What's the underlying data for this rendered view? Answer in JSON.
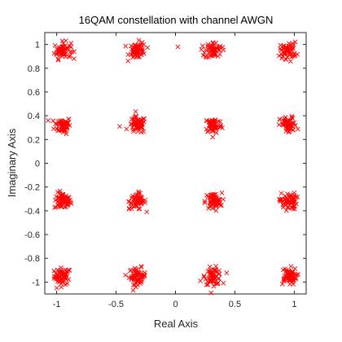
{
  "chart_data": {
    "type": "scatter",
    "title": "16QAM constellation with channel AWGN",
    "xlabel": "Real Axis",
    "ylabel": "Imaginary Axis",
    "xlim": [
      -1.1,
      1.1
    ],
    "ylim": [
      -1.1,
      1.1
    ],
    "xticks": [
      -1,
      -0.5,
      0,
      0.5,
      1
    ],
    "xtick_labels": [
      "-1",
      "-0.5",
      "0",
      "0.5",
      "1"
    ],
    "yticks": [
      1,
      0.8,
      0.6,
      0.4,
      0.2,
      0,
      -0.2,
      -0.4,
      -0.6,
      -0.8,
      -1
    ],
    "ytick_labels": [
      "1",
      "0.8",
      "0.6",
      "0.4",
      "0.2",
      "0",
      "-0.2",
      "-0.4",
      "-0.6",
      "-0.8",
      "-1"
    ],
    "grid": false,
    "legend": "none",
    "marker": "x",
    "marker_color": "#ff0000",
    "constellation_levels": [
      -0.95,
      -0.32,
      0.32,
      0.95
    ],
    "noise_sigma": 0.035,
    "points_per_cluster": 60,
    "outliers": [
      [
        -0.47,
        0.31
      ],
      [
        -0.39,
        -0.38
      ],
      [
        0.21,
        -0.99
      ],
      [
        -1.0,
        -1.05
      ],
      [
        0.02,
        0.98
      ]
    ]
  }
}
